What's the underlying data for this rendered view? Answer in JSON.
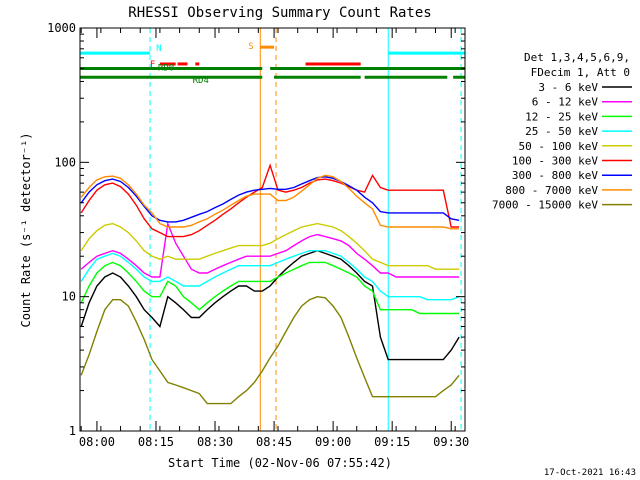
{
  "chart_data": {
    "type": "line",
    "title": "RHESSI Observing Summary Count Rates",
    "xlabel": "Start Time (02-Nov-06 07:55:42)",
    "ylabel": "Count Rate (s⁻¹ detector⁻¹)",
    "yscale": "log",
    "xlim": [
      "07:55:42",
      "09:33:30"
    ],
    "ylim": [
      1,
      1000
    ],
    "x_ticks": [
      "08:00",
      "08:15",
      "08:30",
      "08:45",
      "09:00",
      "09:15",
      "09:30"
    ],
    "y_ticks": [
      "1",
      "10",
      "100",
      "1000"
    ],
    "grid": false,
    "legend_position": "right",
    "legend_header": [
      "Det 1,3,4,5,6,9,",
      "FDecim 1, Att 0"
    ],
    "timestamp": "17-Oct-2021 16:43",
    "x": [
      "07:56",
      "07:58",
      "08:00",
      "08:02",
      "08:04",
      "08:06",
      "08:08",
      "08:10",
      "08:12",
      "08:14",
      "08:16",
      "08:18",
      "08:20",
      "08:22",
      "08:24",
      "08:26",
      "08:28",
      "08:30",
      "08:32",
      "08:34",
      "08:36",
      "08:38",
      "08:40",
      "08:42",
      "08:44",
      "08:46",
      "08:48",
      "08:50",
      "08:52",
      "08:54",
      "08:56",
      "08:58",
      "09:00",
      "09:02",
      "09:04",
      "09:06",
      "09:08",
      "09:10",
      "09:12",
      "09:14",
      "09:16",
      "09:18",
      "09:20",
      "09:22",
      "09:24",
      "09:26",
      "09:28",
      "09:30",
      "09:32"
    ],
    "series": [
      {
        "name": "3 - 6 keV",
        "color": "#000000",
        "values": [
          6,
          9,
          12,
          14,
          15,
          14,
          12,
          10,
          8,
          7,
          6,
          10,
          9,
          8,
          7,
          7,
          8,
          9,
          10,
          11,
          12,
          12,
          11,
          11,
          12,
          14,
          16,
          18,
          20,
          21,
          22,
          21,
          20,
          19,
          17,
          15,
          13,
          12,
          5,
          3.4,
          3.4,
          3.4,
          3.4,
          3.4,
          3.4,
          3.4,
          3.4,
          4,
          5
        ]
      },
      {
        "name": "6 - 12 keV",
        "color": "#ff00ff",
        "values": [
          16,
          18,
          20,
          21,
          22,
          21,
          19,
          17,
          15,
          14,
          14,
          35,
          25,
          20,
          16,
          15,
          15,
          16,
          17,
          18,
          19,
          20,
          20,
          20,
          20,
          21,
          22,
          24,
          26,
          28,
          29,
          28,
          27,
          26,
          24,
          21,
          19,
          17,
          15,
          15,
          14,
          14,
          14,
          14,
          14,
          14,
          14,
          14,
          14
        ]
      },
      {
        "name": "12 - 25 keV",
        "color": "#00ff00",
        "values": [
          9,
          12,
          15,
          17,
          18,
          17,
          15,
          13,
          11,
          10,
          10,
          13,
          12,
          10,
          9,
          8,
          9,
          10,
          11,
          12,
          13,
          13,
          13,
          13,
          13,
          14,
          15,
          16,
          17,
          18,
          18,
          18,
          17,
          16,
          15,
          14,
          12,
          11,
          8,
          8,
          8,
          8,
          8,
          7.5,
          7.5,
          7.5,
          7.5,
          7.5,
          7.5
        ]
      },
      {
        "name": "25 - 50 keV",
        "color": "#00ffff",
        "values": [
          13,
          16,
          19,
          20,
          21,
          20,
          18,
          16,
          14,
          13,
          13,
          14,
          13,
          12,
          12,
          12,
          13,
          14,
          15,
          16,
          17,
          17,
          17,
          17,
          17,
          18,
          19,
          20,
          21,
          22,
          22,
          22,
          21,
          20,
          18,
          16,
          14,
          13,
          11,
          10,
          10,
          10,
          10,
          10,
          9.5,
          9.5,
          9.5,
          9.5,
          10
        ]
      },
      {
        "name": "50 - 100 keV",
        "color": "#cccc00",
        "values": [
          22,
          27,
          31,
          34,
          35,
          33,
          30,
          26,
          22,
          20,
          19,
          20,
          19,
          19,
          19,
          19,
          20,
          21,
          22,
          23,
          24,
          24,
          24,
          24,
          25,
          27,
          29,
          31,
          33,
          34,
          35,
          34,
          33,
          31,
          28,
          25,
          22,
          19,
          18,
          17,
          17,
          17,
          17,
          17,
          17,
          16,
          16,
          16,
          16
        ]
      },
      {
        "name": "100 - 300 keV",
        "color": "#ff0000",
        "values": [
          42,
          52,
          62,
          68,
          70,
          66,
          58,
          48,
          38,
          32,
          30,
          28,
          28,
          28,
          29,
          31,
          34,
          37,
          41,
          45,
          50,
          55,
          60,
          65,
          95,
          62,
          60,
          62,
          65,
          70,
          74,
          75,
          73,
          70,
          66,
          62,
          60,
          80,
          65,
          62,
          62,
          62,
          62,
          62,
          62,
          62,
          62,
          33,
          33
        ]
      },
      {
        "name": "300 - 800 keV",
        "color": "#0000ff",
        "values": [
          50,
          60,
          68,
          73,
          75,
          72,
          65,
          56,
          47,
          40,
          37,
          36,
          36,
          37,
          39,
          41,
          43,
          46,
          49,
          53,
          57,
          60,
          62,
          63,
          64,
          63,
          63,
          65,
          69,
          73,
          77,
          78,
          76,
          72,
          67,
          62,
          55,
          50,
          43,
          42,
          42,
          42,
          42,
          42,
          42,
          42,
          42,
          38,
          37
        ]
      },
      {
        "name": "800 - 7000 keV",
        "color": "#ff8c00",
        "values": [
          55,
          65,
          74,
          78,
          79,
          76,
          68,
          58,
          48,
          42,
          35,
          33,
          33,
          33,
          34,
          36,
          38,
          41,
          44,
          48,
          52,
          56,
          58,
          58,
          58,
          52,
          52,
          55,
          61,
          68,
          76,
          80,
          78,
          72,
          64,
          56,
          50,
          45,
          34,
          33,
          33,
          33,
          33,
          33,
          33,
          33,
          33,
          32,
          32
        ]
      },
      {
        "name": "7000 - 15000 keV",
        "color": "#808000",
        "values": [
          2.6,
          3.7,
          5.5,
          8,
          9.5,
          9.5,
          8.5,
          6.5,
          4.8,
          3.4,
          2.8,
          2.3,
          2.2,
          2.1,
          2.0,
          1.9,
          1.6,
          1.6,
          1.6,
          1.6,
          1.8,
          2.0,
          2.3,
          2.8,
          3.5,
          4.3,
          5.5,
          7.0,
          8.5,
          9.5,
          10,
          9.8,
          8.5,
          7.0,
          5.0,
          3.5,
          2.5,
          1.8,
          1.8,
          1.8,
          1.8,
          1.8,
          1.8,
          1.8,
          1.8,
          1.8,
          2,
          2.2,
          2.6
        ]
      }
    ],
    "state_bars": [
      {
        "label": "N",
        "color": "#00ffff",
        "level": 650,
        "intervals": [
          [
            "07:55:42",
            "08:13:30"
          ],
          [
            "09:14:00",
            "09:33:30"
          ]
        ]
      },
      {
        "label": "F",
        "color": "#ff0000",
        "level": 540,
        "intervals": [
          [
            "08:16:00",
            "08:20:00"
          ],
          [
            "08:20:30",
            "08:23:00"
          ],
          [
            "08:25:00",
            "08:26:00"
          ],
          [
            "08:53:00",
            "09:07:00"
          ]
        ]
      },
      {
        "label": "S",
        "color": "#ff8c00",
        "level": 720,
        "intervals": [
          [
            "08:41:30",
            "08:45:00"
          ]
        ]
      },
      {
        "label": "RD0",
        "color": "#008000",
        "level": 500,
        "intervals": [
          [
            "07:55:42",
            "08:42:00"
          ],
          [
            "08:44:00",
            "09:33:30"
          ]
        ]
      },
      {
        "label": "RD4",
        "color": "#008000",
        "level": 430,
        "intervals": [
          [
            "07:55:42",
            "08:42:00"
          ],
          [
            "08:45:00",
            "09:07:00"
          ],
          [
            "09:08:00",
            "09:29:00"
          ],
          [
            "09:30:30",
            "09:33:30"
          ]
        ]
      }
    ],
    "vlines": [
      {
        "time": "08:13:30",
        "color": "#00ffff",
        "style": "dashed"
      },
      {
        "time": "09:14:00",
        "color": "#00ffff",
        "style": "solid"
      },
      {
        "time": "09:32:30",
        "color": "#00ffff",
        "style": "dashed"
      },
      {
        "time": "08:41:30",
        "color": "#ff8c00",
        "style": "solid"
      },
      {
        "time": "08:45:30",
        "color": "#ff8c00",
        "style": "dashed"
      }
    ]
  }
}
